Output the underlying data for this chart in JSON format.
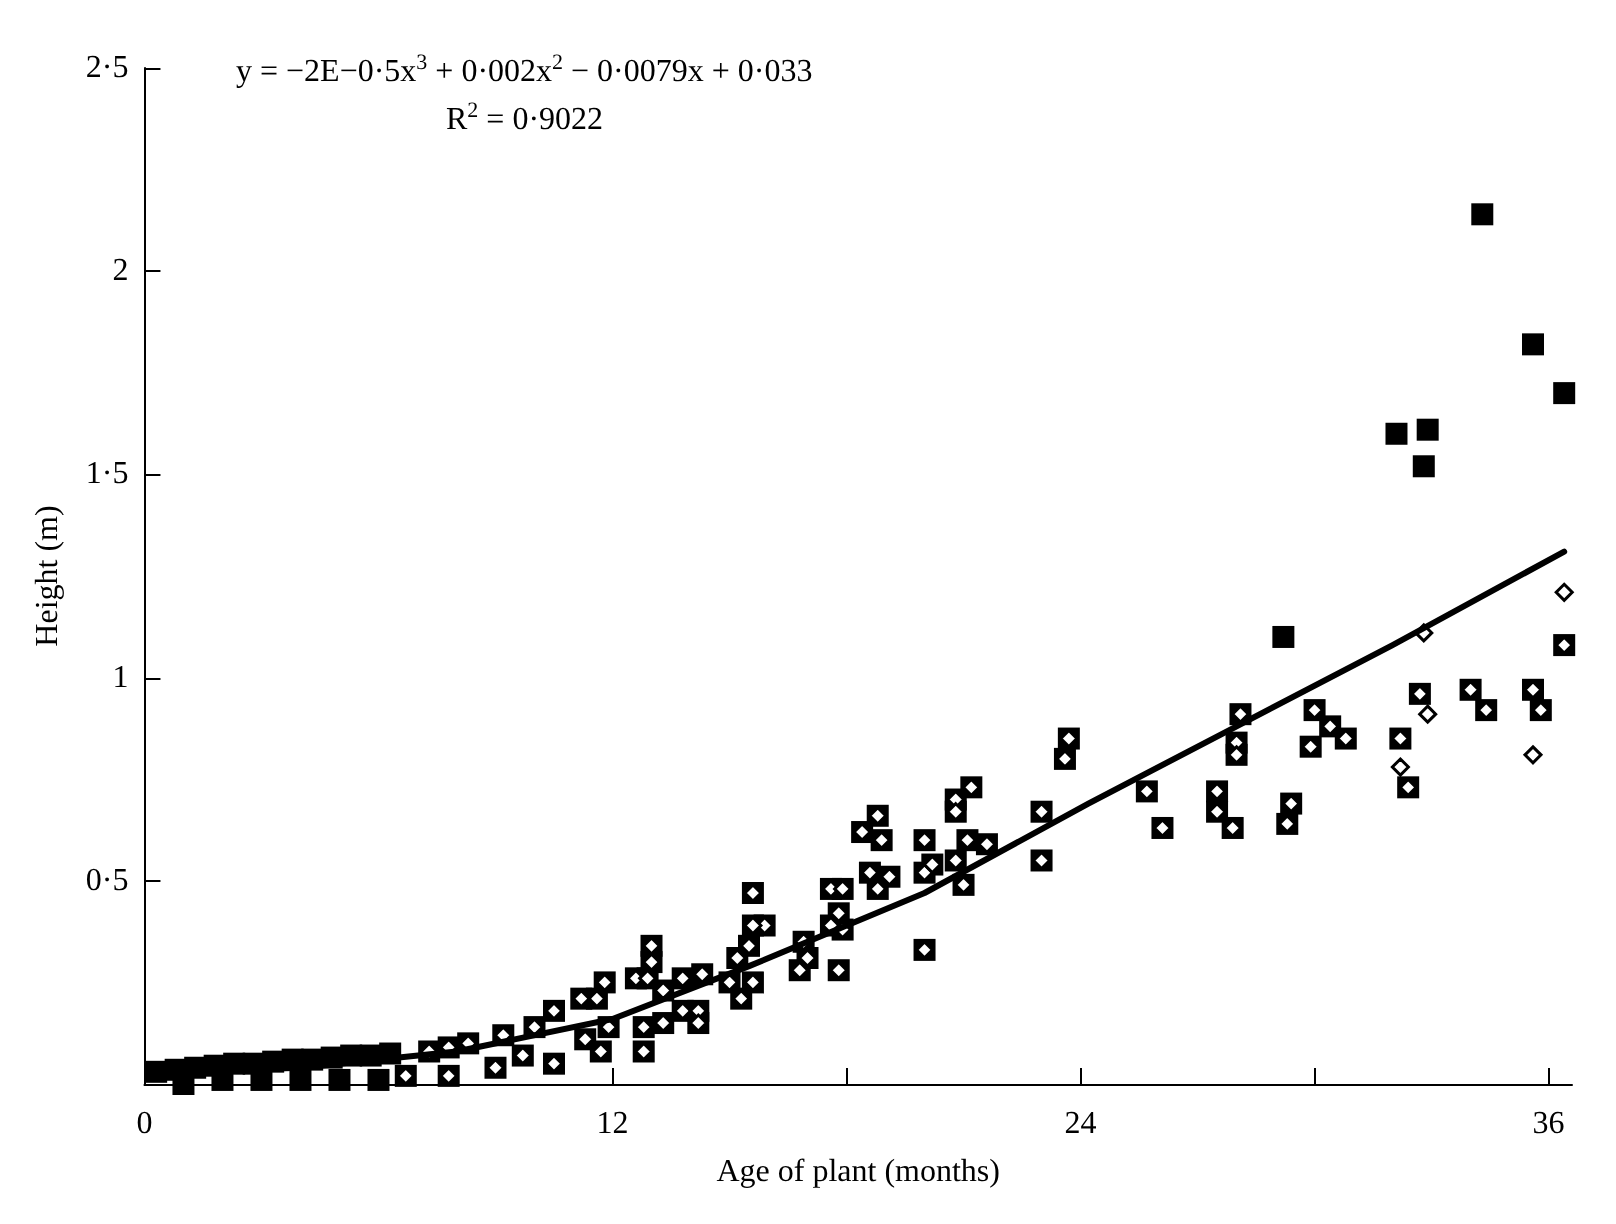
{
  "chart_data": {
    "type": "scatter",
    "xlabel": "Age of plant (months)",
    "ylabel": "Height (m)",
    "annotations": [
      "y = −2E−0·5x$^{3}$ + 0·002x$^{2}$ − 0·0079x + 0·033",
      "R$^{2}$ = 0·9022"
    ],
    "xlim": [
      0,
      36.6
    ],
    "ylim": [
      0,
      2.5
    ],
    "xticks": [
      0,
      12,
      {
        "value": 18,
        "label": null
      },
      24,
      {
        "value": 30,
        "label": null
      },
      36
    ],
    "yticks": [
      {
        "value": 0.5,
        "label": "0·5"
      },
      1,
      {
        "value": 1.5,
        "label": "1·5"
      },
      2,
      {
        "value": 2.5,
        "label": "2·5"
      }
    ],
    "grid": false,
    "series": [
      {
        "marker": "square",
        "color": "#000000",
        "x": [
          34.3,
          35.6,
          36.4,
          32.1,
          32.9,
          32.8,
          29.2,
          36.4,
          32.7,
          34.0,
          34.4,
          35.6,
          35.8,
          30.0,
          30.4,
          30.8,
          29.9,
          32.2,
          32.4,
          28.1,
          28.0,
          28.0,
          25.7,
          26.1,
          27.5,
          27.5,
          27.9,
          29.4,
          29.3,
          23.7,
          23.6,
          21.2,
          20.8,
          20.8,
          18.8,
          18.4,
          18.9,
          20.0,
          21.6,
          21.1,
          23.0,
          23.0,
          18.6,
          19.1,
          18.8,
          20.0,
          20.2,
          20.8,
          21.0,
          17.6,
          17.9,
          17.8,
          17.6,
          17.9,
          20.0,
          17.8,
          15.6,
          15.9,
          15.6,
          16.9,
          17.0,
          16.8,
          15.5,
          15.2,
          15.0,
          15.6,
          15.3,
          13.0,
          13.0,
          12.6,
          12.9,
          13.8,
          14.3,
          13.3,
          13.8,
          14.2,
          14.2,
          13.3,
          12.8,
          12.8,
          11.8,
          11.9,
          11.6,
          11.7,
          11.2,
          10.5,
          10.0,
          9.7,
          10.5,
          11.3,
          9.2,
          9.0,
          8.3,
          7.8,
          7.3,
          6.7,
          7.8,
          0.3,
          0.8,
          1.3,
          1.8,
          2.3,
          2.8,
          3.3,
          3.8,
          4.3,
          4.8,
          5.3,
          5.8,
          6.3,
          2.0,
          3.0,
          4.0,
          5.0,
          6.0,
          1.0
        ],
        "values": [
          2.14,
          1.82,
          1.7,
          1.6,
          1.61,
          1.52,
          1.1,
          1.08,
          0.96,
          0.97,
          0.92,
          0.97,
          0.92,
          0.92,
          0.88,
          0.85,
          0.83,
          0.85,
          0.73,
          0.91,
          0.84,
          0.81,
          0.72,
          0.63,
          0.72,
          0.67,
          0.63,
          0.69,
          0.64,
          0.85,
          0.8,
          0.73,
          0.7,
          0.67,
          0.66,
          0.62,
          0.6,
          0.6,
          0.59,
          0.6,
          0.67,
          0.55,
          0.52,
          0.51,
          0.48,
          0.52,
          0.54,
          0.55,
          0.49,
          0.48,
          0.48,
          0.42,
          0.39,
          0.38,
          0.33,
          0.28,
          0.47,
          0.39,
          0.39,
          0.35,
          0.31,
          0.28,
          0.34,
          0.31,
          0.25,
          0.25,
          0.21,
          0.34,
          0.3,
          0.26,
          0.26,
          0.26,
          0.27,
          0.23,
          0.18,
          0.18,
          0.15,
          0.15,
          0.14,
          0.08,
          0.25,
          0.14,
          0.21,
          0.08,
          0.21,
          0.18,
          0.14,
          0.07,
          0.05,
          0.11,
          0.12,
          0.04,
          0.1,
          0.09,
          0.08,
          0.02,
          0.02,
          0.03,
          0.035,
          0.04,
          0.045,
          0.05,
          0.05,
          0.055,
          0.06,
          0.06,
          0.065,
          0.07,
          0.07,
          0.075,
          0.01,
          0.01,
          0.01,
          0.01,
          0.01,
          0.0
        ]
      },
      {
        "type": "scatter",
        "marker": "diamond",
        "color": "#000000",
        "x": [
          36.4,
          32.8,
          35.6,
          32.2,
          32.9,
          36.4,
          32.7,
          34.0,
          34.4,
          35.6,
          35.8,
          30.0,
          30.4,
          30.8,
          29.9,
          32.2,
          32.4,
          28.1,
          28.0,
          28.0,
          25.7,
          26.1,
          27.5,
          27.5,
          27.9,
          29.4,
          29.3,
          23.7,
          23.6,
          21.2,
          20.8,
          20.8,
          18.8,
          18.4,
          18.9,
          20.0,
          21.6,
          21.1,
          23.0,
          23.0,
          18.6,
          19.1,
          18.8,
          20.0,
          20.2,
          20.8,
          21.0,
          17.6,
          17.9,
          17.8,
          17.6,
          17.9,
          20.0,
          17.8,
          15.6,
          15.9,
          15.6,
          16.9,
          17.0,
          16.8,
          15.5,
          15.2,
          15.0,
          15.6,
          15.3,
          13.0,
          13.0,
          12.6,
          12.9,
          13.8,
          14.3,
          13.3,
          13.8,
          14.2,
          14.2,
          13.3,
          12.8,
          12.8,
          11.8,
          11.9,
          11.6,
          11.7,
          11.2,
          10.5,
          10.0,
          9.7,
          10.5,
          11.3,
          9.2,
          9.0,
          8.3,
          7.8,
          7.3,
          6.7,
          7.8
        ],
        "values": [
          1.21,
          1.11,
          0.81,
          0.78,
          0.91,
          1.08,
          0.96,
          0.97,
          0.92,
          0.97,
          0.92,
          0.92,
          0.88,
          0.85,
          0.83,
          0.85,
          0.73,
          0.91,
          0.84,
          0.81,
          0.72,
          0.63,
          0.72,
          0.67,
          0.63,
          0.69,
          0.64,
          0.85,
          0.8,
          0.73,
          0.7,
          0.67,
          0.66,
          0.62,
          0.6,
          0.6,
          0.59,
          0.6,
          0.67,
          0.55,
          0.52,
          0.51,
          0.48,
          0.52,
          0.54,
          0.55,
          0.49,
          0.48,
          0.48,
          0.42,
          0.39,
          0.38,
          0.33,
          0.28,
          0.47,
          0.39,
          0.39,
          0.35,
          0.31,
          0.28,
          0.34,
          0.31,
          0.25,
          0.25,
          0.21,
          0.34,
          0.3,
          0.26,
          0.26,
          0.26,
          0.27,
          0.23,
          0.18,
          0.18,
          0.15,
          0.15,
          0.14,
          0.08,
          0.25,
          0.14,
          0.21,
          0.08,
          0.21,
          0.18,
          0.14,
          0.07,
          0.05,
          0.11,
          0.12,
          0.04,
          0.1,
          0.09,
          0.08,
          0.02,
          0.02
        ]
      },
      {
        "type": "line",
        "marker": "none",
        "line_style": "solid",
        "color": "#000000",
        "x": [
          0.5,
          4,
          8,
          12,
          15.5,
          20,
          24.2,
          28,
          32,
          36.4
        ],
        "values": [
          0.03,
          0.04,
          0.08,
          0.16,
          0.29,
          0.47,
          0.69,
          0.88,
          1.08,
          1.31
        ]
      }
    ]
  }
}
